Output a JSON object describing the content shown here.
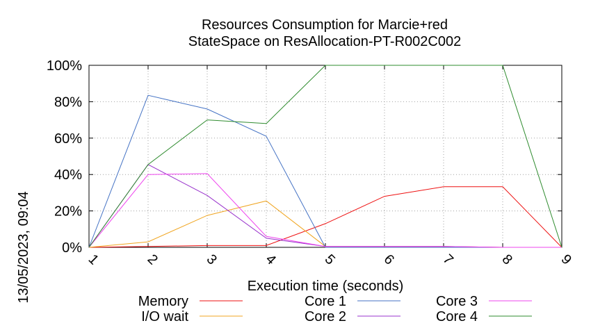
{
  "chart_data": {
    "type": "line",
    "title": [
      "Resources Consumption for Marcie+red",
      "StateSpace on ResAllocation-PT-R002C002"
    ],
    "xlabel": "Execution time (seconds)",
    "ylabel": "",
    "x": [
      1,
      2,
      3,
      4,
      5,
      6,
      7,
      8,
      9
    ],
    "xlim": [
      1,
      9
    ],
    "ylim": [
      0,
      100
    ],
    "yticks": [
      "0%",
      "20%",
      "40%",
      "60%",
      "80%",
      "100%"
    ],
    "xticks": [
      "1",
      "2",
      "3",
      "4",
      "5",
      "6",
      "7",
      "8",
      "9"
    ],
    "grid": true,
    "timestamp": "13/05/2023, 09:04",
    "legend_position": "bottom",
    "series": [
      {
        "name": "Memory",
        "color": "#ee1111",
        "values": [
          0,
          0.5,
          1,
          1,
          13,
          28,
          33.3,
          33.3,
          0
        ]
      },
      {
        "name": "I/O wait",
        "color": "#f0a520",
        "values": [
          0,
          3,
          17.5,
          25.5,
          0.5,
          0.5,
          0.5,
          0,
          0
        ]
      },
      {
        "name": "Core 1",
        "color": "#4472c4",
        "values": [
          0,
          83.5,
          76,
          61,
          0,
          0,
          0,
          0,
          0
        ]
      },
      {
        "name": "Core 2",
        "color": "#9933cc",
        "values": [
          0,
          45.5,
          28.5,
          5,
          0.5,
          0.5,
          0.5,
          0,
          0
        ]
      },
      {
        "name": "Core 3",
        "color": "#ee44ee",
        "values": [
          0,
          40,
          40.5,
          6,
          0.5,
          0.5,
          0.5,
          0,
          0
        ]
      },
      {
        "name": "Core 4",
        "color": "#2e8b2e",
        "values": [
          0,
          45.5,
          70,
          68,
          100,
          100,
          100,
          100,
          0
        ]
      }
    ]
  }
}
